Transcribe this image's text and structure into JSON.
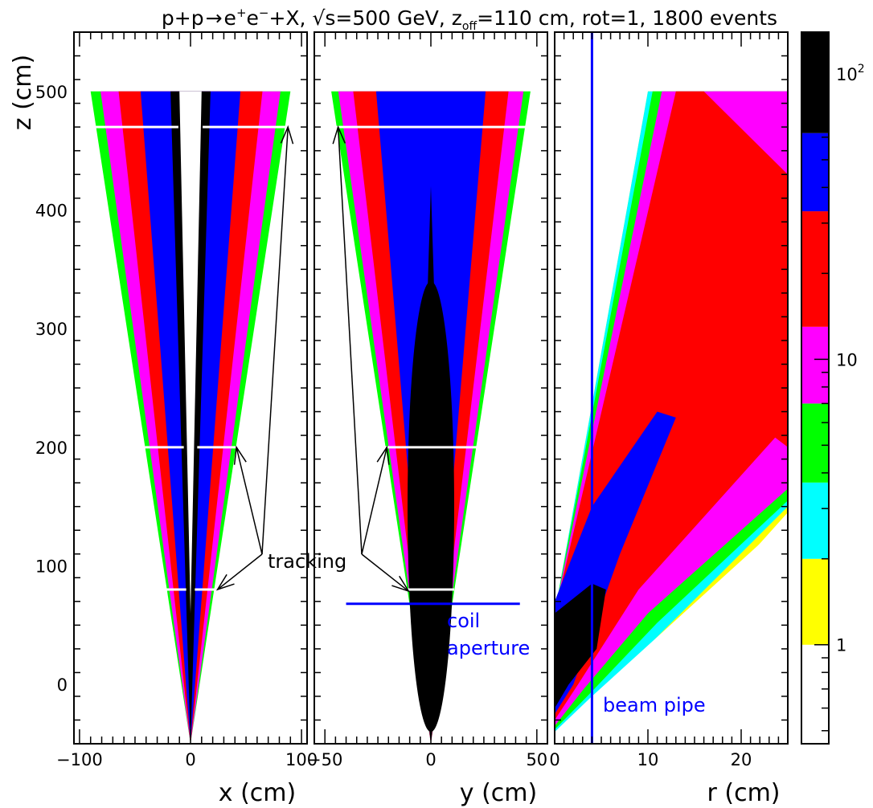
{
  "title": {
    "process": "p+p",
    "arrow": "→",
    "e_plus": "e",
    "e_plus_sup": "+",
    "e_minus": "e",
    "e_minus_sup": "−",
    "rest1": "+X, √s=500 GeV, z",
    "z_sub": "off",
    "rest2": "=110 cm, rot=1, 1800 events"
  },
  "colors": {
    "black": "#000000",
    "blue": "#0000ff",
    "red": "#ff0000",
    "magenta": "#ff00ff",
    "green": "#00ff00",
    "cyan": "#00ffff",
    "yellow": "#ffff00",
    "white": "#ffffff"
  },
  "annotations": {
    "tracking": "tracking",
    "coil": "coil",
    "aperture": "aperture",
    "beam_pipe": "beam pipe"
  },
  "chart_data": [
    {
      "type": "heatmap",
      "panel": "x",
      "xlabel": "x (cm)",
      "ylabel": "z (cm)",
      "xlim": [
        -105,
        105
      ],
      "ylim": [
        -50,
        550
      ],
      "xticks": [
        "−100",
        "0",
        "100"
      ],
      "yticks": [
        "0",
        "100",
        "200",
        "300",
        "400",
        "500"
      ],
      "cone": {
        "apex_z": -50,
        "top_z": 500,
        "half_width_at_top": 90,
        "hole_half_width_at_top": 10
      },
      "tracking_planes": [
        {
          "z": 80,
          "half_width": 20
        },
        {
          "z": 200,
          "half_width": 37
        },
        {
          "z": 470,
          "half_width": 82
        }
      ]
    },
    {
      "type": "heatmap",
      "panel": "y",
      "xlabel": "y (cm)",
      "xlim": [
        -55,
        55
      ],
      "ylim": [
        -50,
        550
      ],
      "xticks": [
        "−50",
        "0",
        "50"
      ],
      "cone": {
        "apex_z": -50,
        "top_z": 500,
        "half_width_at_top": 47
      },
      "tracking_planes": [
        {
          "z": 80,
          "half_width": 9
        },
        {
          "z": 200,
          "half_width": 20
        },
        {
          "z": 470,
          "half_width": 43
        }
      ],
      "coil_aperture": {
        "z": 68,
        "y_range": [
          -40,
          42
        ]
      }
    },
    {
      "type": "heatmap",
      "panel": "r",
      "xlabel": "r (cm)",
      "xlim": [
        0,
        25
      ],
      "ylim": [
        -50,
        550
      ],
      "xticks": [
        "0",
        "10",
        "20"
      ],
      "beam_pipe_r": 4
    }
  ],
  "colorbar": {
    "scale": "log",
    "range": [
      0.45,
      140
    ],
    "bands": [
      {
        "color": "#ffffff",
        "from": 0.45,
        "to": 1
      },
      {
        "color": "#ffff00",
        "from": 1,
        "to": 2
      },
      {
        "color": "#00ffff",
        "from": 2,
        "to": 3.7
      },
      {
        "color": "#00ff00",
        "from": 3.7,
        "to": 7
      },
      {
        "color": "#ff00ff",
        "from": 7,
        "to": 13
      },
      {
        "color": "#ff0000",
        "from": 13,
        "to": 33
      },
      {
        "color": "#0000ff",
        "from": 33,
        "to": 62
      },
      {
        "color": "#000000",
        "from": 62,
        "to": 140
      }
    ],
    "labels": [
      {
        "value": 1,
        "text": "1"
      },
      {
        "value": 10,
        "text": "10"
      },
      {
        "value": 100,
        "text": "10",
        "sup": "2"
      }
    ]
  }
}
